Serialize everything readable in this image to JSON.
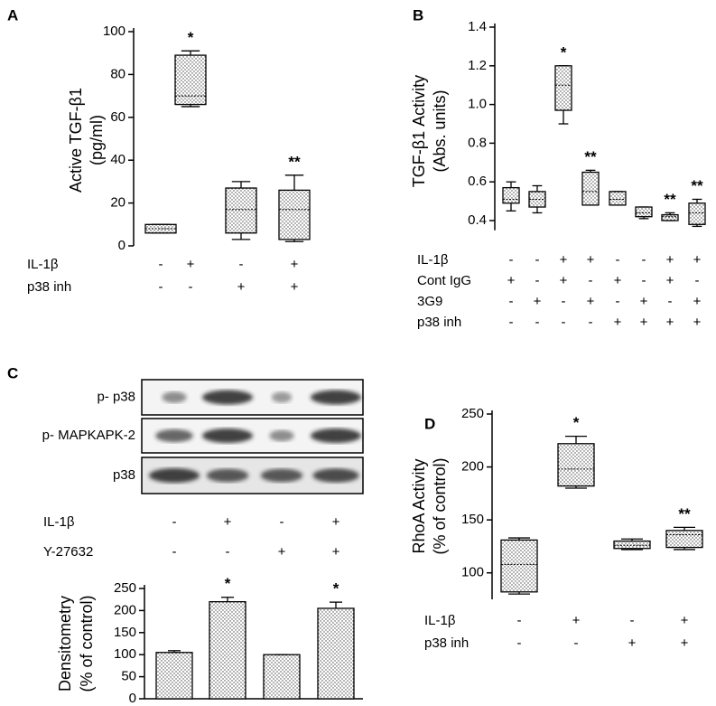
{
  "chart_data": [
    {
      "type": "box",
      "panel": "A",
      "ylabel": [
        "Active TGF-β1",
        "(pg/ml)"
      ],
      "ylim": [
        0,
        100
      ],
      "yticks": [
        0,
        20,
        40,
        60,
        80,
        100
      ],
      "min": [
        6,
        65,
        3,
        2
      ],
      "q1": [
        6,
        66,
        6,
        3
      ],
      "median": [
        8,
        70,
        17,
        17
      ],
      "q3": [
        10,
        89,
        27,
        26
      ],
      "max": [
        10,
        91,
        30,
        33
      ],
      "stars": [
        null,
        "*",
        null,
        "**"
      ],
      "conditions": [
        {
          "label": "IL-1β",
          "values": [
            "-",
            "+",
            "-",
            "+"
          ]
        },
        {
          "label": "p38 inh",
          "values": [
            "-",
            "-",
            "+",
            "+"
          ]
        }
      ]
    },
    {
      "type": "box",
      "panel": "B",
      "ylabel": [
        "TGF-β1 Activity",
        "(Abs. units)"
      ],
      "ylim": [
        0.35,
        1.4
      ],
      "yticks": [
        0.4,
        0.6,
        0.8,
        {
          "value": 1,
          "label": "1.0"
        },
        1.2,
        1.4
      ],
      "min": [
        0.45,
        0.44,
        0.9,
        0.48,
        0.48,
        0.41,
        0.4,
        0.37
      ],
      "q1": [
        0.49,
        0.47,
        0.97,
        0.48,
        0.48,
        0.42,
        0.4,
        0.38
      ],
      "median": [
        0.51,
        0.51,
        1.1,
        0.55,
        0.51,
        0.44,
        0.42,
        0.44
      ],
      "q3": [
        0.57,
        0.55,
        1.2,
        0.65,
        0.55,
        0.47,
        0.43,
        0.49
      ],
      "max": [
        0.6,
        0.58,
        1.2,
        0.66,
        0.55,
        0.47,
        0.44,
        0.51
      ],
      "stars": [
        null,
        null,
        "*",
        "**",
        null,
        null,
        "**",
        "**"
      ],
      "conditions": [
        {
          "label": "IL-1β",
          "values": [
            "-",
            "-",
            "+",
            "+",
            "-",
            "-",
            "+",
            "+"
          ]
        },
        {
          "label": "Cont IgG",
          "values": [
            "+",
            "-",
            "+",
            "-",
            "+",
            "-",
            "+",
            "-"
          ]
        },
        {
          "label": "3G9",
          "values": [
            "-",
            "+",
            "-",
            "+",
            "-",
            "+",
            "-",
            "+"
          ]
        },
        {
          "label": "p38 inh",
          "values": [
            "-",
            "-",
            "-",
            "-",
            "+",
            "+",
            "+",
            "+"
          ]
        }
      ]
    },
    {
      "type": "bar",
      "panel": "C",
      "ylabel": [
        "Densitometry",
        "(% of control)"
      ],
      "blot_rows": [
        "p- p38",
        "p- MAPKAPK-2",
        "p38"
      ],
      "ylim": [
        0,
        250
      ],
      "yticks": [
        0,
        50,
        100,
        150,
        200,
        250
      ],
      "values": [
        105,
        220,
        100,
        205
      ],
      "errors": [
        4,
        10,
        0,
        14
      ],
      "stars": [
        null,
        "*",
        null,
        "*"
      ],
      "conditions": [
        {
          "label": "IL-1β",
          "values": [
            "-",
            "+",
            "-",
            "+"
          ]
        },
        {
          "label": "Y-27632",
          "values": [
            "-",
            "-",
            "+",
            "+"
          ]
        }
      ]
    },
    {
      "type": "box",
      "panel": "D",
      "ylabel": [
        "RhoA Activity",
        "(% of control)"
      ],
      "ylim": [
        75,
        250
      ],
      "yticks": [
        100,
        150,
        200,
        250
      ],
      "min": [
        80,
        180,
        122,
        122
      ],
      "q1": [
        82,
        182,
        123,
        124
      ],
      "median": [
        108,
        198,
        126,
        136
      ],
      "q3": [
        131,
        222,
        130,
        140
      ],
      "max": [
        133,
        229,
        132,
        143
      ],
      "stars": [
        null,
        "*",
        null,
        "**"
      ],
      "conditions": [
        {
          "label": "IL-1β",
          "values": [
            "-",
            "+",
            "-",
            "+"
          ]
        },
        {
          "label": "p38 inh",
          "values": [
            "-",
            "-",
            "+",
            "+"
          ]
        }
      ]
    }
  ]
}
